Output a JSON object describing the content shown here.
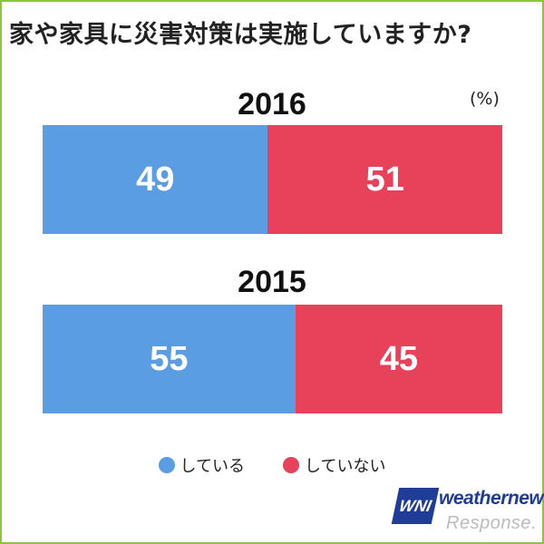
{
  "chart_data": {
    "type": "bar",
    "title": "家や家具に災害対策は実施していますか?",
    "unit": "(%)",
    "categories": [
      "2016",
      "2015"
    ],
    "series": [
      {
        "name": "している",
        "values": [
          49,
          55
        ],
        "color": "#5b9de3"
      },
      {
        "name": "していない",
        "values": [
          51,
          45
        ],
        "color": "#e8425a"
      }
    ],
    "stacked": true,
    "orientation": "horizontal",
    "xlim": [
      0,
      100
    ],
    "legend_position": "bottom"
  },
  "logo": {
    "mark": "WNI",
    "text": "weathernews",
    "sub": "Response."
  }
}
